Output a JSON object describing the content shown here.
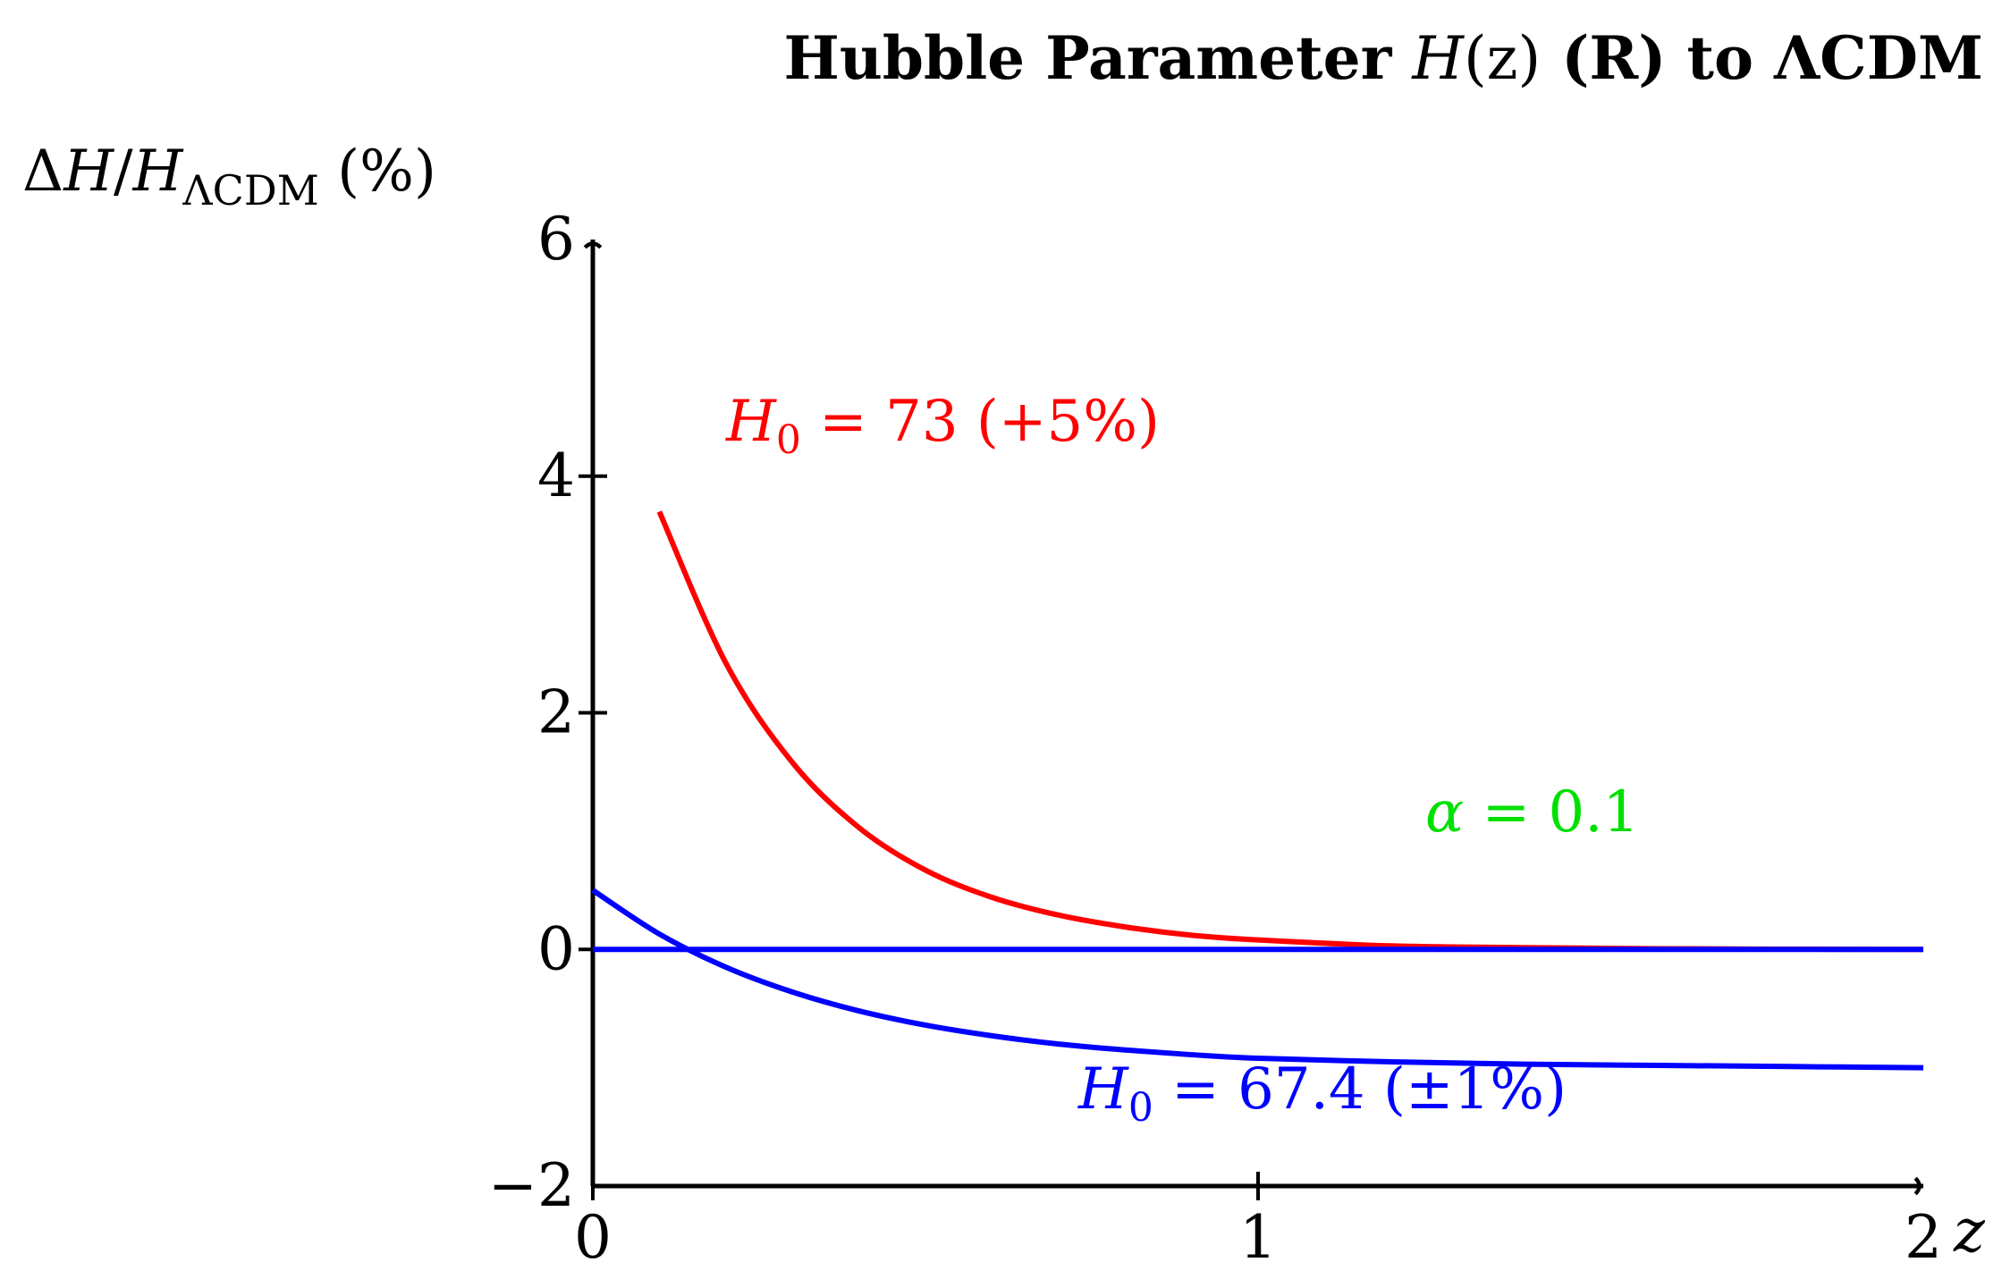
{
  "chart_data": {
    "type": "line",
    "title": "Hubble Parameter H(z) (R) to ΛCDM",
    "title_parts": {
      "pre": "Hubble Parameter ",
      "var": "H",
      "arg": "(z)",
      "post": " (R) to ΛCDM"
    },
    "ylabel": "ΔH/H_ΛCDM (%)",
    "ylabel_parts": {
      "delta": "Δ",
      "h1": "H",
      "slash": "/",
      "h2": "H",
      "sub": "ΛCDM",
      "unit": " (%)"
    },
    "xlabel": "z",
    "xlim": [
      0,
      2
    ],
    "ylim": [
      -2,
      6
    ],
    "xticks": [
      0,
      1,
      2
    ],
    "yticks": [
      -2,
      0,
      2,
      4,
      6
    ],
    "xtick_labels": [
      "0",
      "1",
      "2"
    ],
    "ytick_labels": [
      "−2",
      "0",
      "2",
      "4",
      "6"
    ],
    "grid": false,
    "series": [
      {
        "name": "H0 = 73 (+5%)",
        "color": "#ff0000",
        "x": [
          0.1,
          0.2,
          0.3,
          0.4,
          0.5,
          0.6,
          0.7,
          0.8,
          0.9,
          1.0,
          1.2,
          1.4,
          1.6,
          1.8,
          2.0
        ],
        "y": [
          3.7,
          2.42,
          1.58,
          1.03,
          0.67,
          0.44,
          0.29,
          0.19,
          0.12,
          0.08,
          0.03,
          0.015,
          0.006,
          0.002,
          0.0
        ]
      },
      {
        "name": "H0 = 67.4 (±1%)",
        "color": "#0000ff",
        "x": [
          0.0,
          0.1,
          0.2,
          0.3,
          0.4,
          0.5,
          0.6,
          0.7,
          0.8,
          0.9,
          1.0,
          1.2,
          1.4,
          1.6,
          1.8,
          2.0
        ],
        "y": [
          0.5,
          0.13,
          -0.15,
          -0.36,
          -0.52,
          -0.64,
          -0.73,
          -0.8,
          -0.85,
          -0.89,
          -0.92,
          -0.95,
          -0.97,
          -0.98,
          -0.99,
          -1.0
        ]
      },
      {
        "name": "",
        "color": "#0000ff",
        "x": [
          0.0,
          2.0
        ],
        "y": [
          0.0,
          0.0
        ]
      }
    ],
    "annotations": [
      {
        "series_index": 0,
        "parts": {
          "var": "H",
          "sub": "0",
          "rest": " = 73 (+5%)"
        },
        "color": "#ff0000"
      },
      {
        "series_index": 1,
        "parts": {
          "var": "H",
          "sub": "0",
          "rest": " = 67.4 (±1%)"
        },
        "color": "#0000ff"
      },
      {
        "parts": {
          "var": "α",
          "sub": "",
          "rest": " = 0.1"
        },
        "color": "#00e000"
      }
    ]
  }
}
